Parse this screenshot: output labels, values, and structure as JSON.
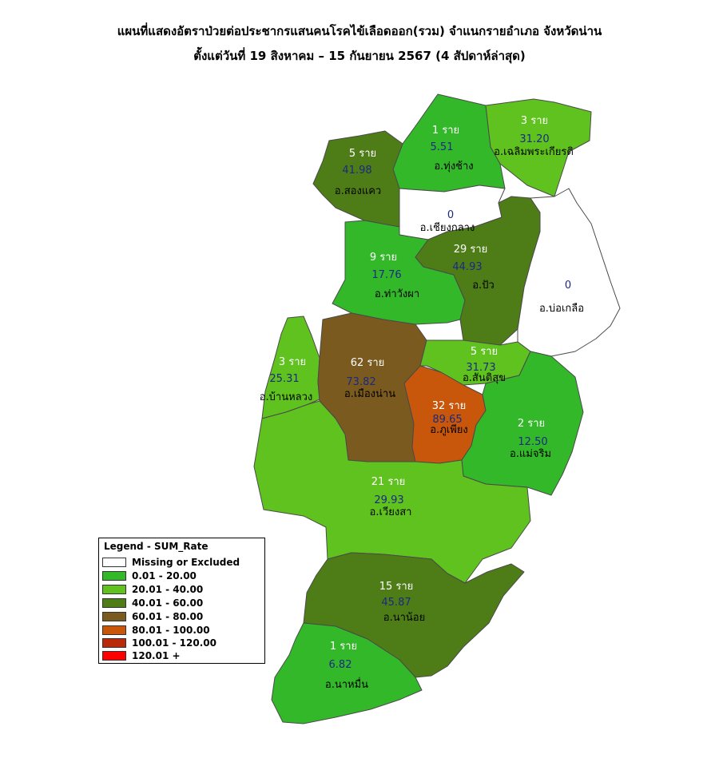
{
  "title": {
    "line1": "แผนที่แสดงอัตราป่วยต่อประชากรแสนคนโรคไข้เลือดออก(รวม) จำแนกรายอำเภอ จังหวัดน่าน",
    "line2": "ตั้งแต่วันที่ 19 สิงหาคม  – 15 กันยายน 2567 (4 สัปดาห์ล่าสุด)"
  },
  "districts": [
    {
      "key": "thung_chang",
      "cases": "1 ราย",
      "rate": "5.51",
      "name": "อ.ทุ่งช้าง",
      "color": "#33b82a"
    },
    {
      "key": "chaloem",
      "cases": "3 ราย",
      "rate": "31.20",
      "name": "อ.เฉลิมพระเกียรติ",
      "color": "#5fc21e"
    },
    {
      "key": "song_khwae",
      "cases": "5 ราย",
      "rate": "41.98",
      "name": "อ.สองแคว",
      "color": "#4e7d17"
    },
    {
      "key": "chiang_klang",
      "cases": "",
      "rate": "0",
      "name": "อ.เชียงกลาง",
      "color": "#ffffff"
    },
    {
      "key": "tha_wang_pha",
      "cases": "9 ราย",
      "rate": "17.76",
      "name": "อ.ท่าวังผา",
      "color": "#33b82a"
    },
    {
      "key": "pua",
      "cases": "29 ราย",
      "rate": "44.93",
      "name": "อ.ปัว",
      "color": "#4e7d17"
    },
    {
      "key": "bo_kluea",
      "cases": "",
      "rate": "0",
      "name": "อ.บ่อเกลือ",
      "color": "#ffffff"
    },
    {
      "key": "ban_luang",
      "cases": "3 ราย",
      "rate": "25.31",
      "name": "อ.บ้านหลวง",
      "color": "#5fc21e"
    },
    {
      "key": "mueang_nan",
      "cases": "62 ราย",
      "rate": "73.82",
      "name": "อ.เมืองน่าน",
      "color": "#7a5a1e"
    },
    {
      "key": "santi_suk",
      "cases": "5 ราย",
      "rate": "31.73",
      "name": "อ.สันติสุข",
      "color": "#5fc21e"
    },
    {
      "key": "phu_phiang",
      "cases": "32 ราย",
      "rate": "89.65",
      "name": "อ.ภูเพียง",
      "color": "#c8570c"
    },
    {
      "key": "mae_charim",
      "cases": "2 ราย",
      "rate": "12.50",
      "name": "อ.แม่จริม",
      "color": "#33b82a"
    },
    {
      "key": "wiang_sa",
      "cases": "21 ราย",
      "rate": "29.93",
      "name": "อ.เวียงสา",
      "color": "#5fc21e"
    },
    {
      "key": "na_noi",
      "cases": "15 ราย",
      "rate": "45.87",
      "name": "อ.นาน้อย",
      "color": "#4e7d17"
    },
    {
      "key": "na_muen",
      "cases": "1 ราย",
      "rate": "6.82",
      "name": "อ.นาหมื่น",
      "color": "#33b82a"
    }
  ],
  "legend": {
    "title": "Legend - SUM_Rate",
    "items": [
      {
        "label": "Missing or Excluded",
        "color": "#ffffff"
      },
      {
        "label": "0.01 - 20.00",
        "color": "#33b82a"
      },
      {
        "label": "20.01 - 40.00",
        "color": "#5fc21e"
      },
      {
        "label": "40.01 - 60.00",
        "color": "#4e7d17"
      },
      {
        "label": "60.01 - 80.00",
        "color": "#7a5a1e"
      },
      {
        "label": "80.01 - 100.00",
        "color": "#c8570c"
      },
      {
        "label": "100.01 - 120.00",
        "color": "#b82a0a"
      },
      {
        "label": "120.01 +",
        "color": "#ff0000"
      }
    ]
  }
}
